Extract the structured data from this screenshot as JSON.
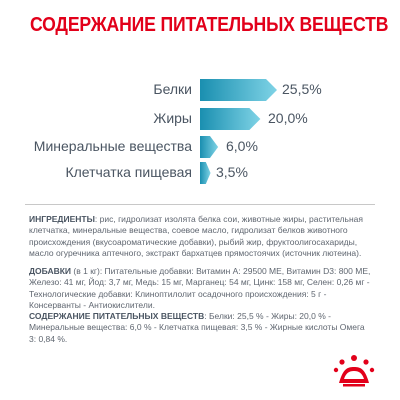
{
  "title": "СОДЕРЖАНИЕ ПИТАТЕЛЬНЫХ ВЕЩЕСТВ",
  "nutrients": [
    {
      "label": "Белки",
      "value": "25,5%",
      "percent": 25.5
    },
    {
      "label": "Жиры",
      "value": "20,0%",
      "percent": 20.0
    },
    {
      "label": "Минеральные вещества",
      "value": "6,0%",
      "percent": 6.0
    },
    {
      "label": "Клетчатка пищевая",
      "value": "3,5%",
      "percent": 3.5
    }
  ],
  "colors": {
    "title": "#e2001a",
    "bar_dark": "#1a8fb0",
    "bar_light": "#7fd3e6",
    "text": "#4a5562",
    "logo": "#e2001a"
  },
  "ingredients": {
    "heading": "ИНГРЕДИЕНТЫ",
    "text": ": рис, гидролизат изолята белка сои, животные жиры, растительная клетчатка, минеральные вещества, соевое масло, гидролизат белков животного происхождения (вкусоароматические добавки), рыбий жир, фруктоолигосахариды, масло огуречника аптечного, экстракт бархатцев прямостоячих (источник лютеина)."
  },
  "additives": {
    "heading": "ДОБАВКИ",
    "text": " (в 1 кг): Питательные добавки: Витамин А: 29500 МЕ, Витамин D3: 800 МЕ, Железо: 41 мг, Йод: 3,7 мг, Медь: 15 мг, Марганец: 54 мг, Цинк: 158 мг, Селен: 0,26 мг - Технологические добавки: Клиноптилолит осадочного происхождения: 5 г - Консерванты - Антиокислители."
  },
  "nutrient_content": {
    "heading": "СОДЕРЖАНИЕ ПИТАТЕЛЬНЫХ ВЕЩЕСТВ",
    "text": ": Белки: 25,5 % - Жиры: 20,0 % - Минеральные вещества: 6,0 % - Клетчатка пищевая: 3,5 % - Жирные кислоты Омега 3: 0,84 %."
  },
  "logo_icon": "crown-icon"
}
